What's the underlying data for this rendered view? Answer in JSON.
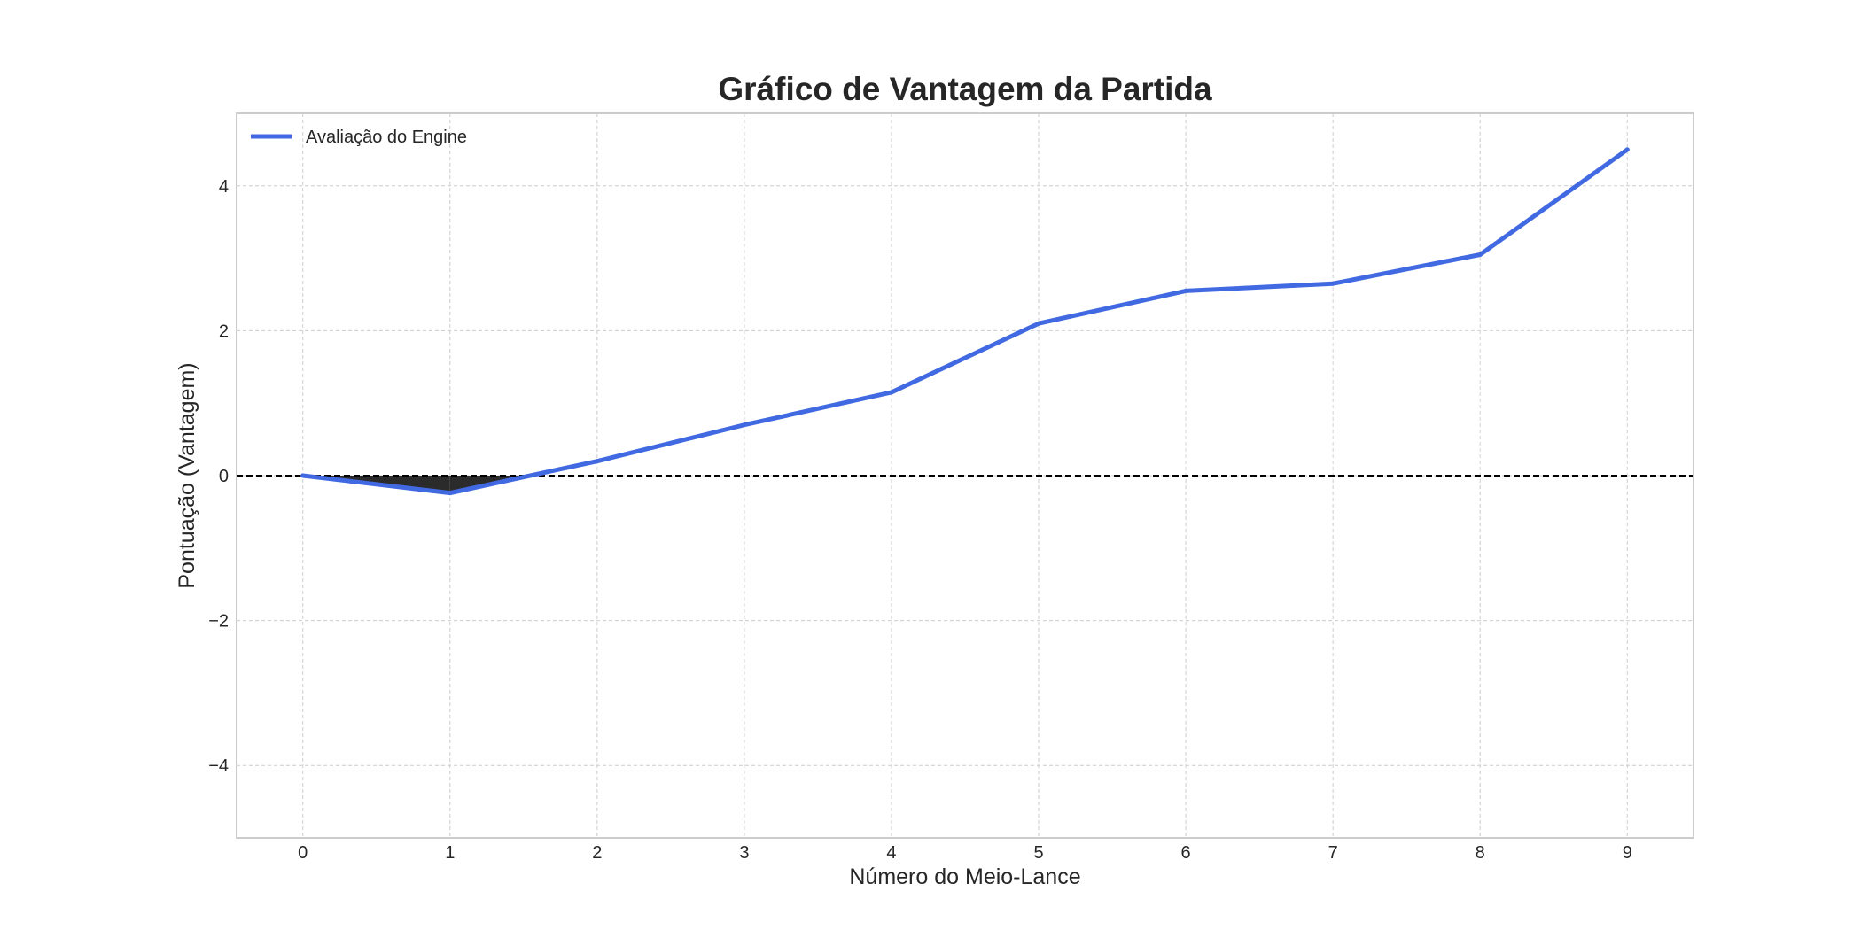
{
  "chart_data": {
    "type": "line",
    "title": "Gráfico de Vantagem da Partida",
    "xlabel": "Número do Meio-Lance",
    "ylabel": "Pontuação (Vantagem)",
    "x": [
      0,
      1,
      2,
      3,
      4,
      5,
      6,
      7,
      8,
      9
    ],
    "series": [
      {
        "name": "Avaliação do Engine",
        "values": [
          0.0,
          -0.24,
          0.2,
          0.7,
          1.15,
          2.1,
          2.55,
          2.65,
          3.05,
          4.5
        ],
        "color": "#4169e1"
      }
    ],
    "xlim": [
      -0.45,
      9.45
    ],
    "ylim": [
      -5,
      5
    ],
    "xticks": [
      "0",
      "1",
      "2",
      "3",
      "4",
      "5",
      "6",
      "7",
      "8",
      "9"
    ],
    "yticks": [
      {
        "value": 4,
        "label": "4"
      },
      {
        "value": 2,
        "label": "2"
      },
      {
        "value": 0,
        "label": "0"
      },
      {
        "value": -2,
        "label": "−2"
      },
      {
        "value": -4,
        "label": "−4"
      }
    ],
    "reference_line": {
      "y": 0,
      "color": "#000000",
      "style": "dashed"
    },
    "fill_above_color": "#ffffff",
    "fill_below_color": "#2b2b2b",
    "grid": true,
    "legend_position": "upper-left"
  }
}
